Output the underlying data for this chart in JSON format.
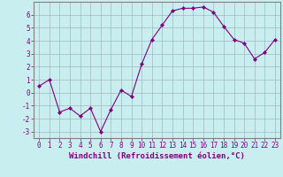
{
  "x": [
    0,
    1,
    2,
    3,
    4,
    5,
    6,
    7,
    8,
    9,
    10,
    11,
    12,
    13,
    14,
    15,
    16,
    17,
    18,
    19,
    20,
    21,
    22,
    23
  ],
  "y": [
    0.5,
    1.0,
    -1.5,
    -1.2,
    -1.8,
    -1.2,
    -3.0,
    -1.3,
    0.2,
    -0.3,
    2.2,
    4.1,
    5.2,
    6.3,
    6.5,
    6.5,
    6.6,
    6.2,
    5.1,
    4.1,
    3.8,
    2.6,
    3.1,
    4.1
  ],
  "line_color": "#800080",
  "marker": "D",
  "marker_size": 2.2,
  "bg_color": "#c8eef0",
  "grid_color": "#a0b8c0",
  "xlabel": "Windchill (Refroidissement éolien,°C)",
  "xlim": [
    -0.5,
    23.5
  ],
  "ylim": [
    -3.5,
    7.0
  ],
  "yticks": [
    -3,
    -2,
    -1,
    0,
    1,
    2,
    3,
    4,
    5,
    6
  ],
  "xticks": [
    0,
    1,
    2,
    3,
    4,
    5,
    6,
    7,
    8,
    9,
    10,
    11,
    12,
    13,
    14,
    15,
    16,
    17,
    18,
    19,
    20,
    21,
    22,
    23
  ],
  "tick_label_size": 5.5,
  "xlabel_size": 6.5,
  "linewidth": 0.8
}
